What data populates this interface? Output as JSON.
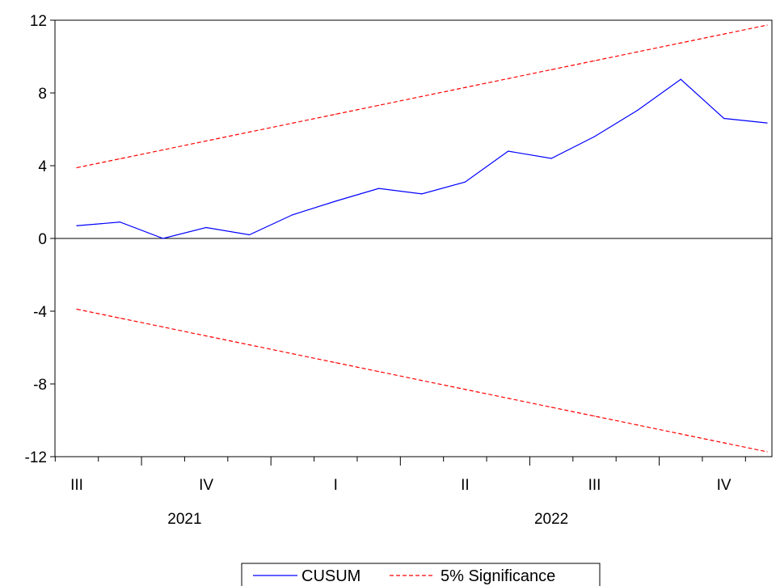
{
  "chart_data": {
    "type": "line",
    "title": "",
    "xlabel": "",
    "ylabel": "",
    "ylim": [
      -12,
      12
    ],
    "yticks": [
      -12,
      -8,
      -4,
      0,
      4,
      8,
      12
    ],
    "ytick_labels": [
      "-12",
      "-8",
      "-4",
      "0",
      "4",
      "8",
      "12"
    ],
    "x_count": 17,
    "quarter_labels": [
      "III",
      "IV",
      "I",
      "II",
      "III",
      "IV"
    ],
    "year_labels": [
      "2021",
      "2022"
    ],
    "grid": false,
    "zero_line": true,
    "legend_position": "bottom-center",
    "series": [
      {
        "name": "CUSUM",
        "color": "#0000ff",
        "style": "solid",
        "values": [
          0.7,
          0.9,
          0.0,
          0.6,
          0.2,
          1.3,
          2.05,
          2.75,
          2.45,
          3.1,
          4.8,
          4.4,
          5.6,
          7.05,
          8.75,
          6.6,
          6.35
        ]
      },
      {
        "name": "5% Significance",
        "color": "#ff0000",
        "style": "dashed",
        "values": [
          3.89,
          4.38,
          4.87,
          5.36,
          5.85,
          6.34,
          6.83,
          7.32,
          7.81,
          8.3,
          8.79,
          9.28,
          9.77,
          10.26,
          10.75,
          11.24,
          11.73
        ]
      },
      {
        "name": "5% Significance",
        "color": "#ff0000",
        "style": "dashed",
        "values": [
          -3.89,
          -4.38,
          -4.87,
          -5.36,
          -5.85,
          -6.34,
          -6.83,
          -7.32,
          -7.81,
          -8.3,
          -8.79,
          -9.28,
          -9.77,
          -10.26,
          -10.75,
          -11.24,
          -11.73
        ]
      }
    ]
  }
}
